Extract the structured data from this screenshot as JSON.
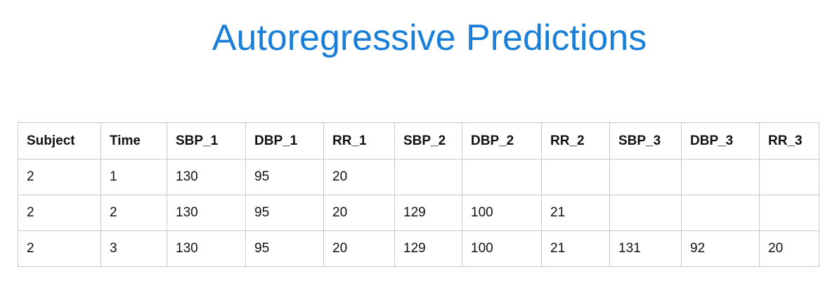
{
  "title": "Autoregressive Predictions",
  "colors": {
    "title": "#1a7fd8",
    "grid": "#c8c8c8",
    "text": "#111111"
  },
  "table": {
    "columns": [
      "Subject",
      "Time",
      "SBP_1",
      "DBP_1",
      "RR_1",
      "SBP_2",
      "DBP_2",
      "RR_2",
      "SBP_3",
      "DBP_3",
      "RR_3"
    ],
    "rows": [
      [
        "2",
        "1",
        "130",
        "95",
        "20",
        "",
        "",
        "",
        "",
        "",
        ""
      ],
      [
        "2",
        "2",
        "130",
        "95",
        "20",
        "129",
        "100",
        "21",
        "",
        "",
        ""
      ],
      [
        "2",
        "3",
        "130",
        "95",
        "20",
        "129",
        "100",
        "21",
        "131",
        "92",
        "20"
      ]
    ]
  }
}
